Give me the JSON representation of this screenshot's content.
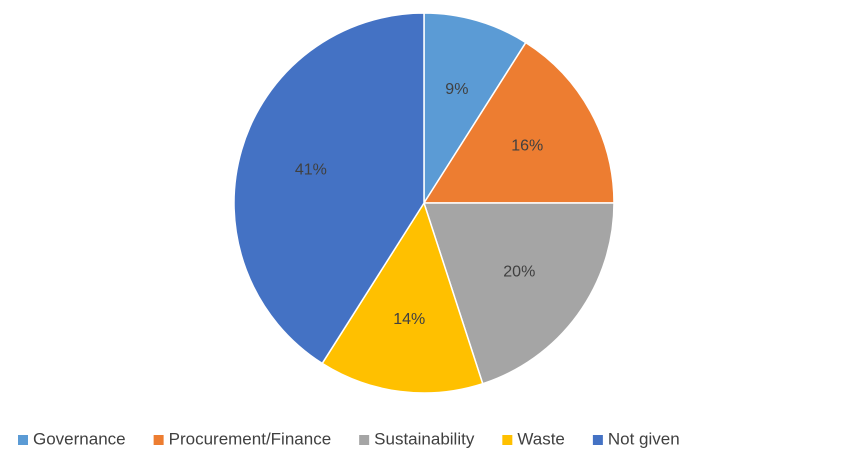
{
  "chart_data": {
    "type": "pie",
    "categories": [
      "Governance",
      "Procurement/Finance",
      "Sustainability",
      "Waste",
      "Not given"
    ],
    "values": [
      9,
      16,
      20,
      14,
      41
    ],
    "value_labels": [
      "9%",
      "16%",
      "20%",
      "14%",
      "41%"
    ],
    "colors": [
      "#5b9bd5",
      "#ed7d31",
      "#a5a5a5",
      "#ffc000",
      "#4472c4"
    ],
    "legend": "bottom"
  }
}
